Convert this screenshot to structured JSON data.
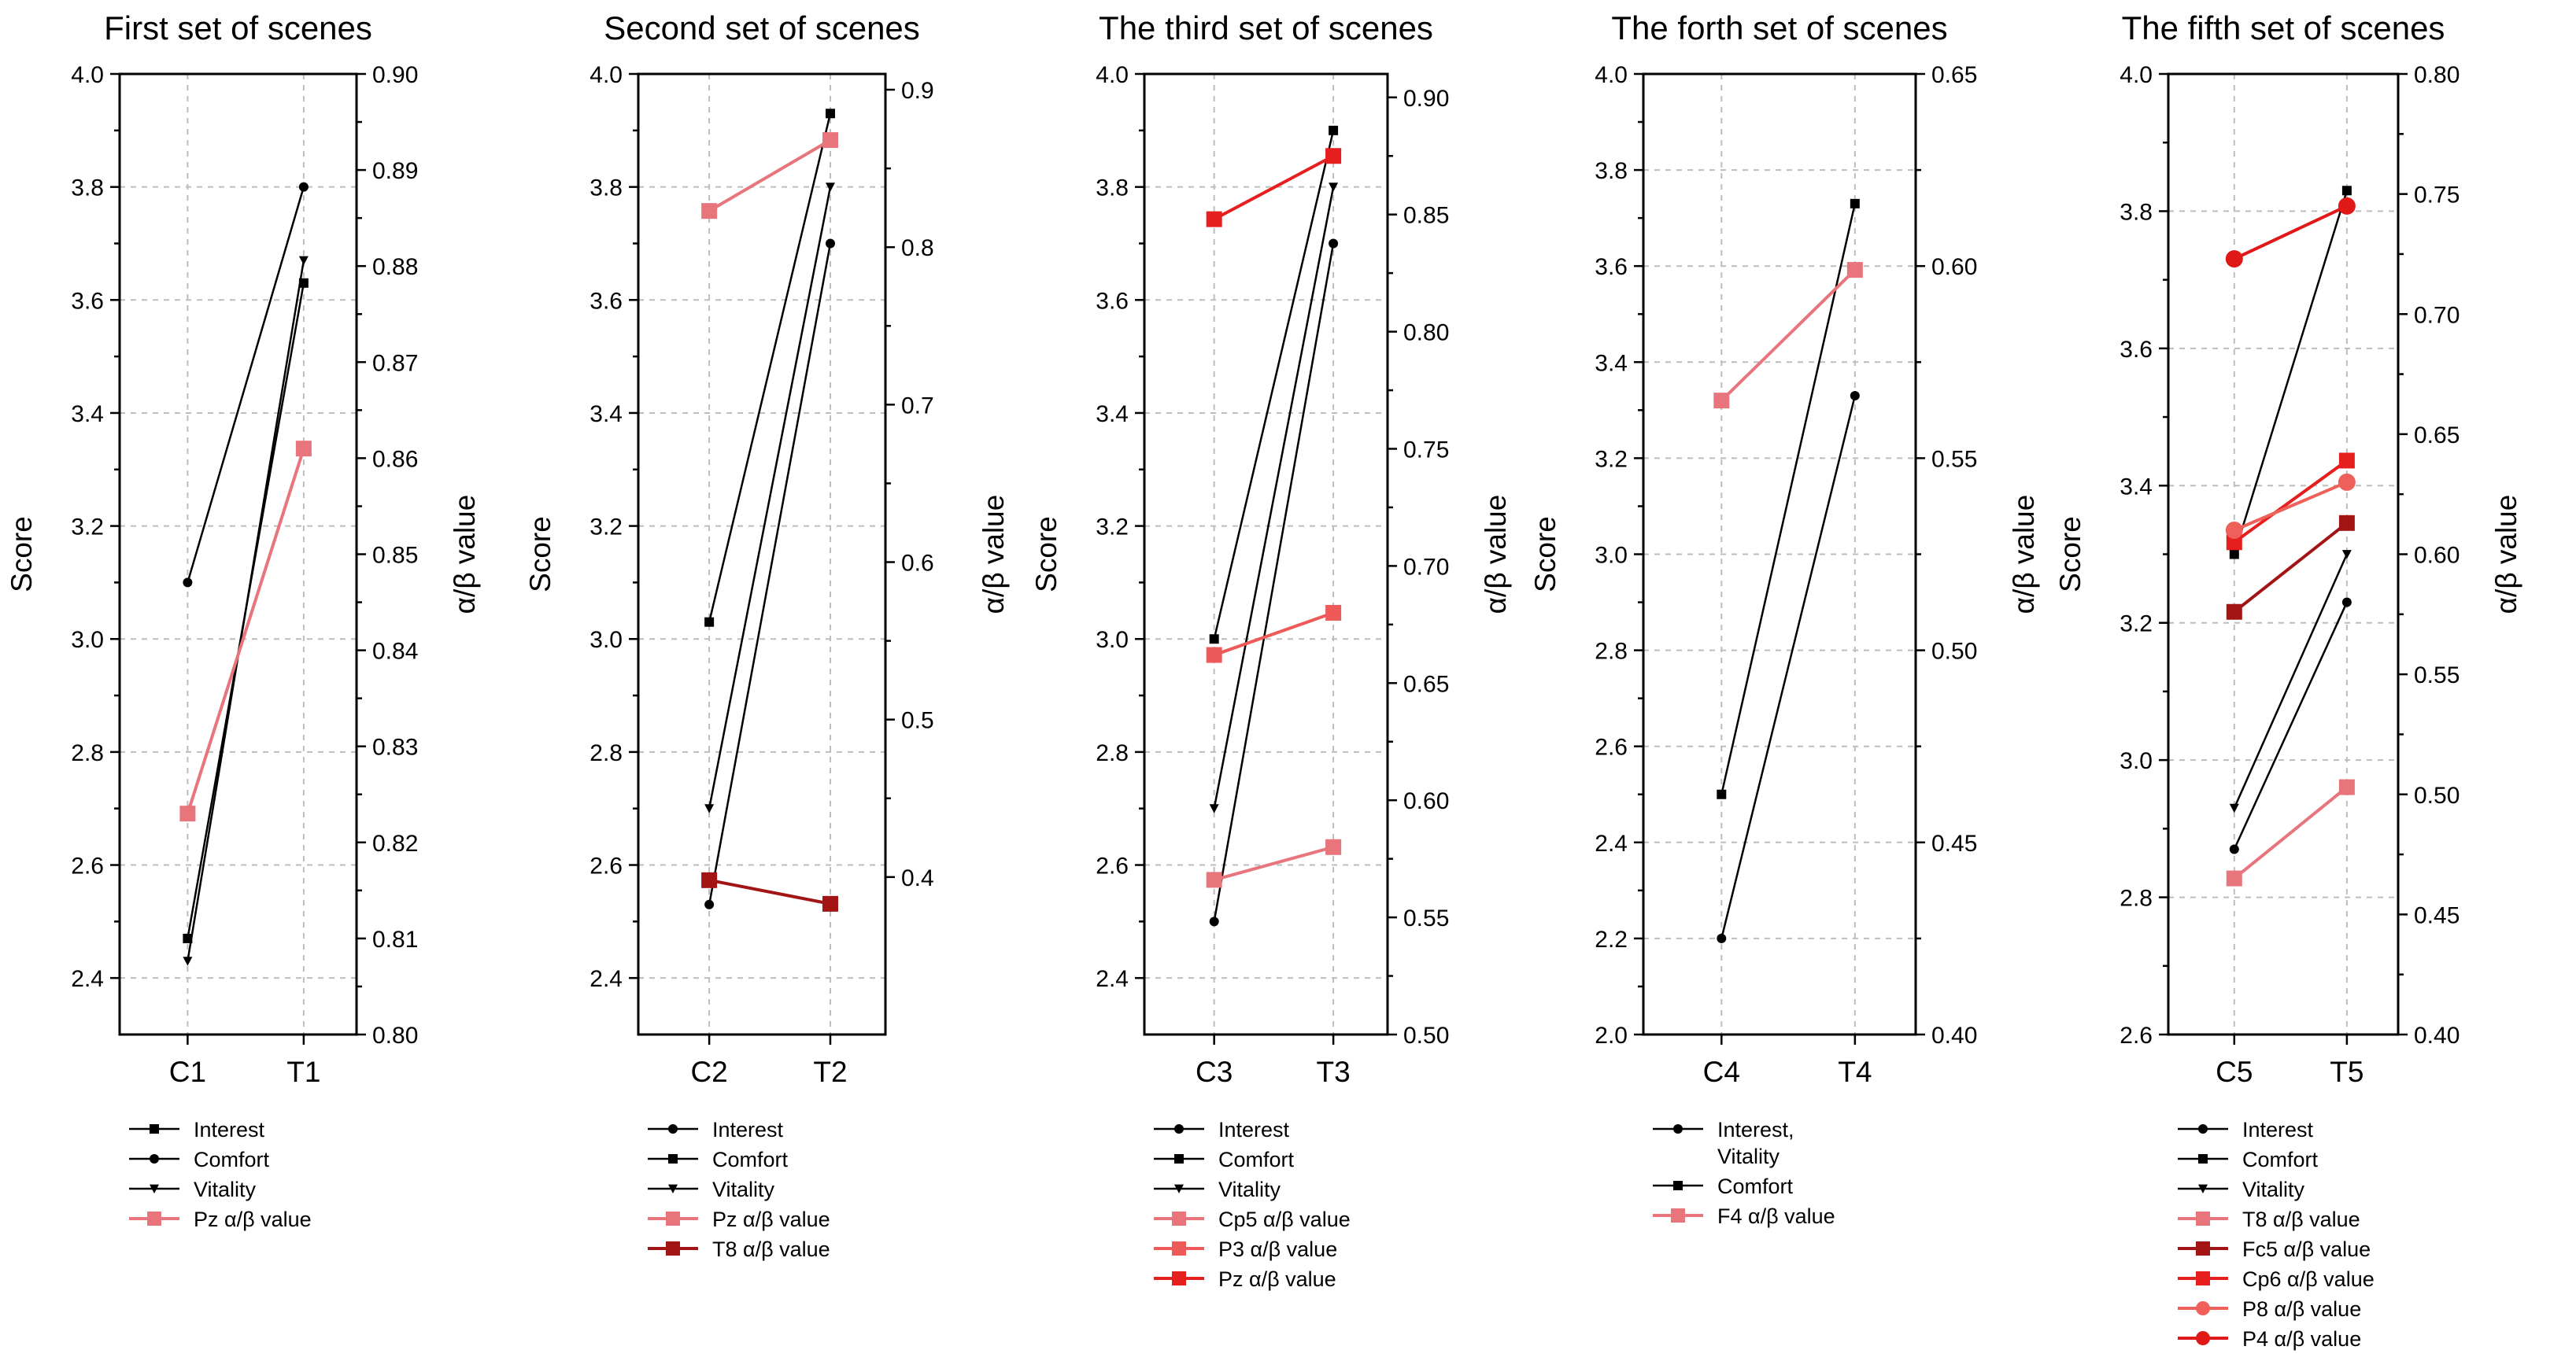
{
  "chart_data": [
    {
      "type": "line",
      "title": "First set of scenes",
      "categories": [
        "C1",
        "T1"
      ],
      "ylabel": "Score",
      "y2label": "α/β value",
      "ylim": [
        2.3,
        4.0
      ],
      "yticks": [
        2.4,
        2.6,
        2.8,
        3.0,
        3.2,
        3.4,
        3.6,
        3.8,
        4.0
      ],
      "y2lim": [
        0.8,
        0.9
      ],
      "y2ticks": [
        0.8,
        0.81,
        0.82,
        0.83,
        0.84,
        0.85,
        0.86,
        0.87,
        0.88,
        0.89,
        0.9
      ],
      "y2decimals": 2,
      "series": [
        {
          "name": "Interest",
          "axis": "left",
          "marker": "square",
          "color": "#000000",
          "values": [
            2.47,
            3.63
          ]
        },
        {
          "name": "Comfort",
          "axis": "left",
          "marker": "circle",
          "color": "#000000",
          "values": [
            3.1,
            3.8
          ]
        },
        {
          "name": "Vitality",
          "axis": "left",
          "marker": "tri-down",
          "color": "#000000",
          "values": [
            2.43,
            3.67
          ]
        },
        {
          "name": "Pz α/β value",
          "axis": "right",
          "marker": "square",
          "color": "#e8747c",
          "values": [
            0.823,
            0.861
          ]
        }
      ],
      "legend": [
        {
          "label": "Interest",
          "marker": "square",
          "color": "#000000"
        },
        {
          "label": "Comfort",
          "marker": "circle",
          "color": "#000000"
        },
        {
          "label": "Vitality",
          "marker": "tri-down",
          "color": "#000000"
        },
        {
          "label": "Pz α/β value",
          "marker": "square",
          "color": "#e8747c"
        }
      ]
    },
    {
      "type": "line",
      "title": "Second set of scenes",
      "categories": [
        "C2",
        "T2"
      ],
      "ylabel": "Score",
      "y2label": "α/β value",
      "ylim": [
        2.3,
        4.0
      ],
      "yticks": [
        2.4,
        2.6,
        2.8,
        3.0,
        3.2,
        3.4,
        3.6,
        3.8,
        4.0
      ],
      "y2lim": [
        0.3,
        0.91
      ],
      "y2ticks": [
        0.4,
        0.5,
        0.6,
        0.7,
        0.8,
        0.9
      ],
      "y2decimals": 1,
      "series": [
        {
          "name": "Interest",
          "axis": "left",
          "marker": "circle",
          "color": "#000000",
          "values": [
            2.53,
            3.7
          ]
        },
        {
          "name": "Comfort",
          "axis": "left",
          "marker": "square",
          "color": "#000000",
          "values": [
            3.03,
            3.93
          ]
        },
        {
          "name": "Vitality",
          "axis": "left",
          "marker": "tri-down",
          "color": "#000000",
          "values": [
            2.7,
            3.8
          ]
        },
        {
          "name": "Pz α/β value",
          "axis": "right",
          "marker": "square",
          "color": "#e8747c",
          "values": [
            0.823,
            0.868
          ]
        },
        {
          "name": "T8 α/β value",
          "axis": "right",
          "marker": "square",
          "color": "#a31515",
          "values": [
            0.398,
            0.383
          ]
        }
      ],
      "legend": [
        {
          "label": "Interest",
          "marker": "circle",
          "color": "#000000"
        },
        {
          "label": "Comfort",
          "marker": "square",
          "color": "#000000"
        },
        {
          "label": "Vitality",
          "marker": "tri-down",
          "color": "#000000"
        },
        {
          "label": "Pz α/β value",
          "marker": "square",
          "color": "#e8747c"
        },
        {
          "label": "T8 α/β value",
          "marker": "square",
          "color": "#a31515"
        }
      ]
    },
    {
      "type": "line",
      "title": "The third set of scenes",
      "categories": [
        "C3",
        "T3"
      ],
      "ylabel": "Score",
      "y2label": "α/β value",
      "ylim": [
        2.3,
        4.0
      ],
      "yticks": [
        2.4,
        2.6,
        2.8,
        3.0,
        3.2,
        3.4,
        3.6,
        3.8,
        4.0
      ],
      "y2lim": [
        0.5,
        0.91
      ],
      "y2ticks": [
        0.5,
        0.55,
        0.6,
        0.65,
        0.7,
        0.75,
        0.8,
        0.85,
        0.9
      ],
      "y2decimals": 2,
      "series": [
        {
          "name": "Interest",
          "axis": "left",
          "marker": "circle",
          "color": "#000000",
          "values": [
            2.5,
            3.7
          ]
        },
        {
          "name": "Comfort",
          "axis": "left",
          "marker": "square",
          "color": "#000000",
          "values": [
            3.0,
            3.9
          ]
        },
        {
          "name": "Vitality",
          "axis": "left",
          "marker": "tri-down",
          "color": "#000000",
          "values": [
            2.7,
            3.8
          ]
        },
        {
          "name": "Cp5 α/β value",
          "axis": "right",
          "marker": "square",
          "color": "#e8747c",
          "values": [
            0.566,
            0.58
          ]
        },
        {
          "name": "P3 α/β value",
          "axis": "right",
          "marker": "square",
          "color": "#ee5a5a",
          "values": [
            0.662,
            0.68
          ]
        },
        {
          "name": "Pz α/β value",
          "axis": "right",
          "marker": "square",
          "color": "#e61e1e",
          "values": [
            0.848,
            0.875
          ]
        }
      ],
      "legend": [
        {
          "label": "Interest",
          "marker": "circle",
          "color": "#000000"
        },
        {
          "label": "Comfort",
          "marker": "square",
          "color": "#000000"
        },
        {
          "label": "Vitality",
          "marker": "tri-down",
          "color": "#000000"
        },
        {
          "label": "Cp5 α/β value",
          "marker": "square",
          "color": "#e8747c"
        },
        {
          "label": "P3 α/β value",
          "marker": "square",
          "color": "#ee5a5a"
        },
        {
          "label": "Pz α/β value",
          "marker": "square",
          "color": "#e61e1e"
        }
      ]
    },
    {
      "type": "line",
      "title": "The forth set of scenes",
      "categories": [
        "C4",
        "T4"
      ],
      "ylabel": "Score",
      "y2label": "α/β value",
      "ylim": [
        2.0,
        4.0
      ],
      "yticks": [
        2.0,
        2.2,
        2.4,
        2.6,
        2.8,
        3.0,
        3.2,
        3.4,
        3.6,
        3.8,
        4.0
      ],
      "y2lim": [
        0.4,
        0.65
      ],
      "y2ticks": [
        0.4,
        0.45,
        0.5,
        0.55,
        0.6,
        0.65
      ],
      "y2decimals": 2,
      "series": [
        {
          "name": "Interest, Vitality",
          "axis": "left",
          "marker": "circle",
          "color": "#000000",
          "values": [
            2.2,
            3.33
          ]
        },
        {
          "name": "Comfort",
          "axis": "left",
          "marker": "square",
          "color": "#000000",
          "values": [
            2.5,
            3.73
          ]
        },
        {
          "name": "F4 α/β value",
          "axis": "right",
          "marker": "square",
          "color": "#e8747c",
          "values": [
            0.565,
            0.599
          ]
        }
      ],
      "legend": [
        {
          "label": "Interest,",
          "label2": "Vitality",
          "marker": "circle",
          "color": "#000000"
        },
        {
          "label": "Comfort",
          "marker": "square",
          "color": "#000000"
        },
        {
          "label": "F4 α/β value",
          "marker": "square",
          "color": "#e8747c"
        }
      ]
    },
    {
      "type": "line",
      "title": "The fifth set of scenes",
      "categories": [
        "C5",
        "T5"
      ],
      "ylabel": "Score",
      "y2label": "α/β value",
      "ylim": [
        2.6,
        4.0
      ],
      "yticks": [
        2.6,
        2.8,
        3.0,
        3.2,
        3.4,
        3.6,
        3.8,
        4.0
      ],
      "y2lim": [
        0.4,
        0.8
      ],
      "y2ticks": [
        0.4,
        0.45,
        0.5,
        0.55,
        0.6,
        0.65,
        0.7,
        0.75,
        0.8
      ],
      "y2decimals": 2,
      "series": [
        {
          "name": "Interest",
          "axis": "left",
          "marker": "circle",
          "color": "#000000",
          "values": [
            2.87,
            3.23
          ]
        },
        {
          "name": "Comfort",
          "axis": "left",
          "marker": "square",
          "color": "#000000",
          "values": [
            3.3,
            3.83
          ]
        },
        {
          "name": "Vitality",
          "axis": "left",
          "marker": "tri-down",
          "color": "#000000",
          "values": [
            2.93,
            3.3
          ]
        },
        {
          "name": "T8 α/β value",
          "axis": "right",
          "marker": "square",
          "color": "#e8747c",
          "values": [
            0.465,
            0.503
          ]
        },
        {
          "name": "Fc5 α/β value",
          "axis": "right",
          "marker": "square",
          "color": "#a31515",
          "values": [
            0.576,
            0.613
          ]
        },
        {
          "name": "Cp6 α/β value",
          "axis": "right",
          "marker": "square",
          "color": "#e61e1e",
          "values": [
            0.605,
            0.639
          ]
        },
        {
          "name": "P8 α/β value",
          "axis": "right",
          "marker": "circle",
          "color": "#f0605a",
          "values": [
            0.61,
            0.63
          ]
        },
        {
          "name": "P4 α/β value",
          "axis": "right",
          "marker": "circle",
          "color": "#e01818",
          "values": [
            0.723,
            0.745
          ]
        }
      ],
      "legend": [
        {
          "label": "Interest",
          "marker": "circle",
          "color": "#000000"
        },
        {
          "label": "Comfort",
          "marker": "square",
          "color": "#000000"
        },
        {
          "label": "Vitality",
          "marker": "tri-down",
          "color": "#000000"
        },
        {
          "label": "T8 α/β value",
          "marker": "square",
          "color": "#e8747c"
        },
        {
          "label": "Fc5 α/β value",
          "marker": "square",
          "color": "#a31515"
        },
        {
          "label": "Cp6 α/β value",
          "marker": "square",
          "color": "#e61e1e"
        },
        {
          "label": "P8 α/β value",
          "marker": "circle",
          "color": "#f0605a"
        },
        {
          "label": "P4 α/β value",
          "marker": "circle",
          "color": "#e01818"
        }
      ]
    }
  ]
}
